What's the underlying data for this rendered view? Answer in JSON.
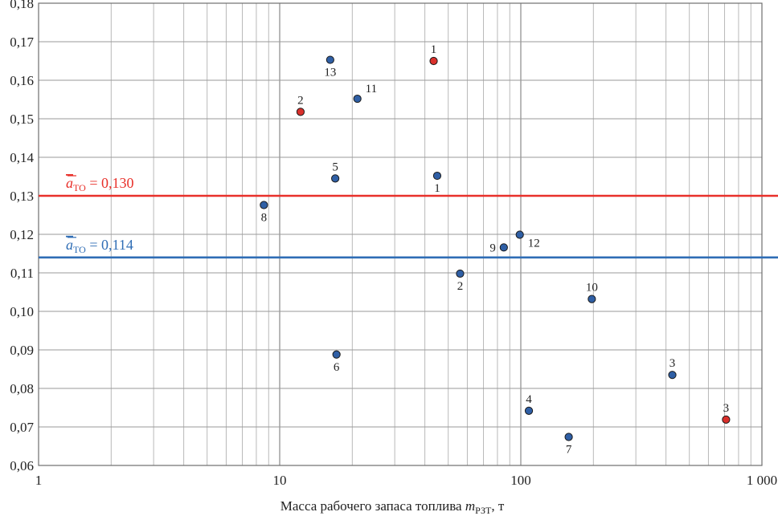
{
  "chart_data": {
    "type": "scatter",
    "xscale": "log",
    "xlim": [
      1,
      1000
    ],
    "ylim": [
      0.06,
      0.18
    ],
    "x_ticks": [
      {
        "value": 1,
        "label": "1"
      },
      {
        "value": 10,
        "label": "10"
      },
      {
        "value": 100,
        "label": "100"
      },
      {
        "value": 1000,
        "label": "1 000"
      }
    ],
    "y_ticks": [
      {
        "value": 0.18,
        "label": "0,18"
      },
      {
        "value": 0.17,
        "label": "0,17"
      },
      {
        "value": 0.16,
        "label": "0,16"
      },
      {
        "value": 0.15,
        "label": "0,15"
      },
      {
        "value": 0.14,
        "label": "0,14"
      },
      {
        "value": 0.13,
        "label": "0,13"
      },
      {
        "value": 0.12,
        "label": "0,12"
      },
      {
        "value": 0.11,
        "label": "0,11"
      },
      {
        "value": 0.1,
        "label": "0,10"
      },
      {
        "value": 0.09,
        "label": "0,09"
      },
      {
        "value": 0.08,
        "label": "0,08"
      },
      {
        "value": 0.07,
        "label": "0,07"
      },
      {
        "value": 0.06,
        "label": "0,06"
      }
    ],
    "xlabel": {
      "main": "Масса рабочего запаса топлива ",
      "symbol": "m",
      "subscript": "РЗТ",
      "unit": ", т"
    },
    "grid": true,
    "series": [
      {
        "name": "blue",
        "color": "#2f5fa5",
        "points": [
          {
            "x": 45,
            "y": 0.1352,
            "label": "1",
            "label_pos": "below"
          },
          {
            "x": 56,
            "y": 0.1098,
            "label": "2",
            "label_pos": "below"
          },
          {
            "x": 425,
            "y": 0.0835,
            "label": "3",
            "label_pos": "above"
          },
          {
            "x": 108,
            "y": 0.0742,
            "label": "4",
            "label_pos": "above"
          },
          {
            "x": 17,
            "y": 0.1345,
            "label": "5",
            "label_pos": "above"
          },
          {
            "x": 17.2,
            "y": 0.0888,
            "label": "6",
            "label_pos": "below"
          },
          {
            "x": 158,
            "y": 0.0674,
            "label": "7",
            "label_pos": "below"
          },
          {
            "x": 8.6,
            "y": 0.1276,
            "label": "8",
            "label_pos": "below"
          },
          {
            "x": 85,
            "y": 0.1166,
            "label": "9",
            "label_pos": "left"
          },
          {
            "x": 197,
            "y": 0.1032,
            "label": "10",
            "label_pos": "above"
          },
          {
            "x": 21,
            "y": 0.1552,
            "label": "11",
            "label_pos": "above-right"
          },
          {
            "x": 99,
            "y": 0.1199,
            "label": "12",
            "label_pos": "below-right"
          },
          {
            "x": 16.2,
            "y": 0.1653,
            "label": "13",
            "label_pos": "below"
          }
        ]
      },
      {
        "name": "red",
        "color": "#d9302b",
        "points": [
          {
            "x": 43.5,
            "y": 0.165,
            "label": "1",
            "label_pos": "above"
          },
          {
            "x": 12.2,
            "y": 0.1518,
            "label": "2",
            "label_pos": "above"
          },
          {
            "x": 710,
            "y": 0.0719,
            "label": "3",
            "label_pos": "above"
          }
        ]
      }
    ],
    "reference_lines": [
      {
        "y": 0.13,
        "color": "#e8302a",
        "symbol": "a",
        "subscript": "ТО",
        "value_text": " = 0,130"
      },
      {
        "y": 0.114,
        "color": "#2f6db5",
        "symbol": "a",
        "subscript": "ТО",
        "value_text": " = 0,114"
      }
    ]
  }
}
